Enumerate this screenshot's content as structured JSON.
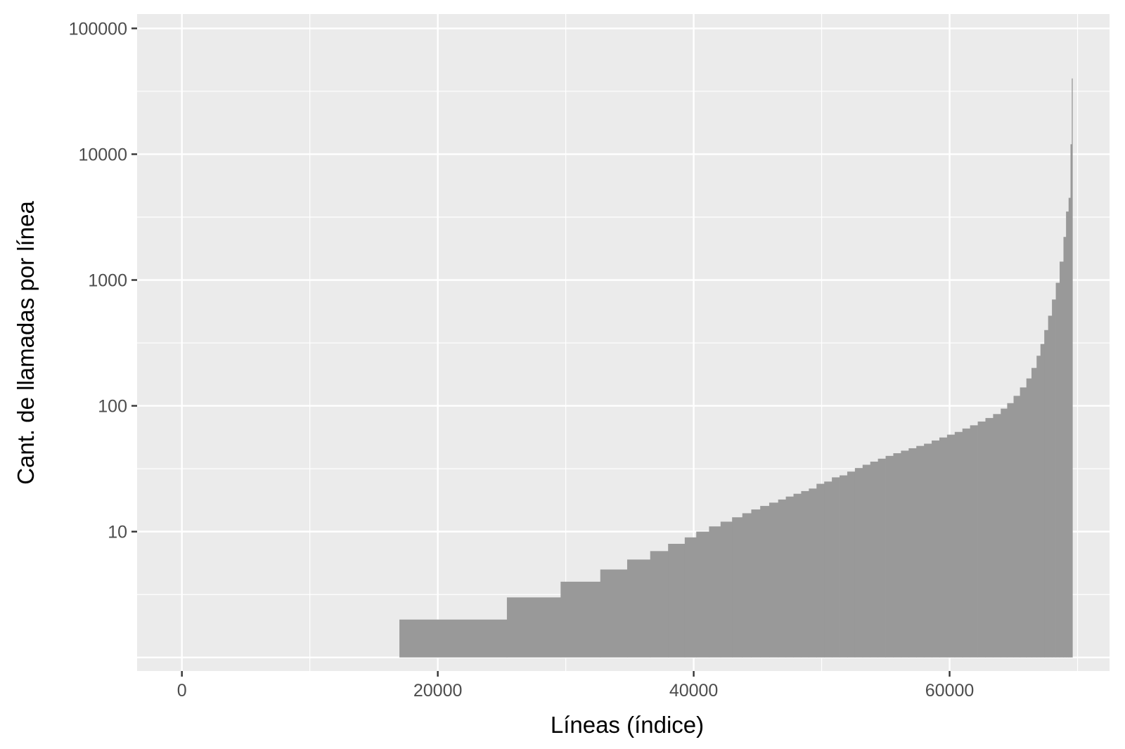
{
  "chart_data": {
    "type": "area",
    "title": "",
    "xlabel": "Líneas (índice)",
    "ylabel": "Cant. de llamadas por línea",
    "xlim": [
      -3500,
      72500
    ],
    "ylim": [
      0.78,
      130000
    ],
    "y_scale": "log10",
    "x_ticks": [
      0,
      20000,
      40000,
      60000
    ],
    "x_tick_labels": [
      "0",
      "20000",
      "40000",
      "60000"
    ],
    "y_ticks": [
      10,
      100,
      1000,
      10000,
      100000
    ],
    "y_tick_labels": [
      "10",
      "100",
      "1000",
      "10000",
      "100000"
    ],
    "grid": true,
    "legend": "none",
    "colors": {
      "panel": "#ebebeb",
      "grid": "#ffffff",
      "fill": "#999999",
      "tick": "#333333"
    },
    "series": [
      {
        "step": true,
        "x_end": 69600,
        "x": [
          17000,
          25400,
          29600,
          32700,
          34800,
          36600,
          38000,
          39300,
          40200,
          41200,
          42100,
          43000,
          43800,
          44500,
          45200,
          45900,
          46600,
          47200,
          47800,
          48400,
          49000,
          49600,
          50200,
          50800,
          51400,
          52000,
          52600,
          53200,
          53800,
          54400,
          55000,
          55600,
          56200,
          56800,
          57400,
          58000,
          58600,
          59200,
          59800,
          60400,
          61000,
          61600,
          62200,
          62800,
          63400,
          64000,
          64500,
          65000,
          65500,
          66000,
          66400,
          66800,
          67100,
          67400,
          67700,
          68000,
          68300,
          68600,
          68900,
          69100,
          69300,
          69450,
          69550
        ],
        "y": [
          2,
          3,
          4,
          5,
          6,
          7,
          8,
          9,
          10,
          11,
          12,
          13,
          14,
          15,
          16,
          17,
          18,
          19,
          20,
          21,
          22,
          24,
          25,
          27,
          28,
          30,
          32,
          34,
          36,
          38,
          40,
          42,
          44,
          46,
          48,
          50,
          53,
          56,
          59,
          62,
          66,
          70,
          75,
          80,
          86,
          95,
          105,
          120,
          140,
          165,
          200,
          250,
          310,
          400,
          520,
          700,
          950,
          1400,
          2200,
          3500,
          4500,
          12000,
          40000
        ]
      }
    ]
  }
}
